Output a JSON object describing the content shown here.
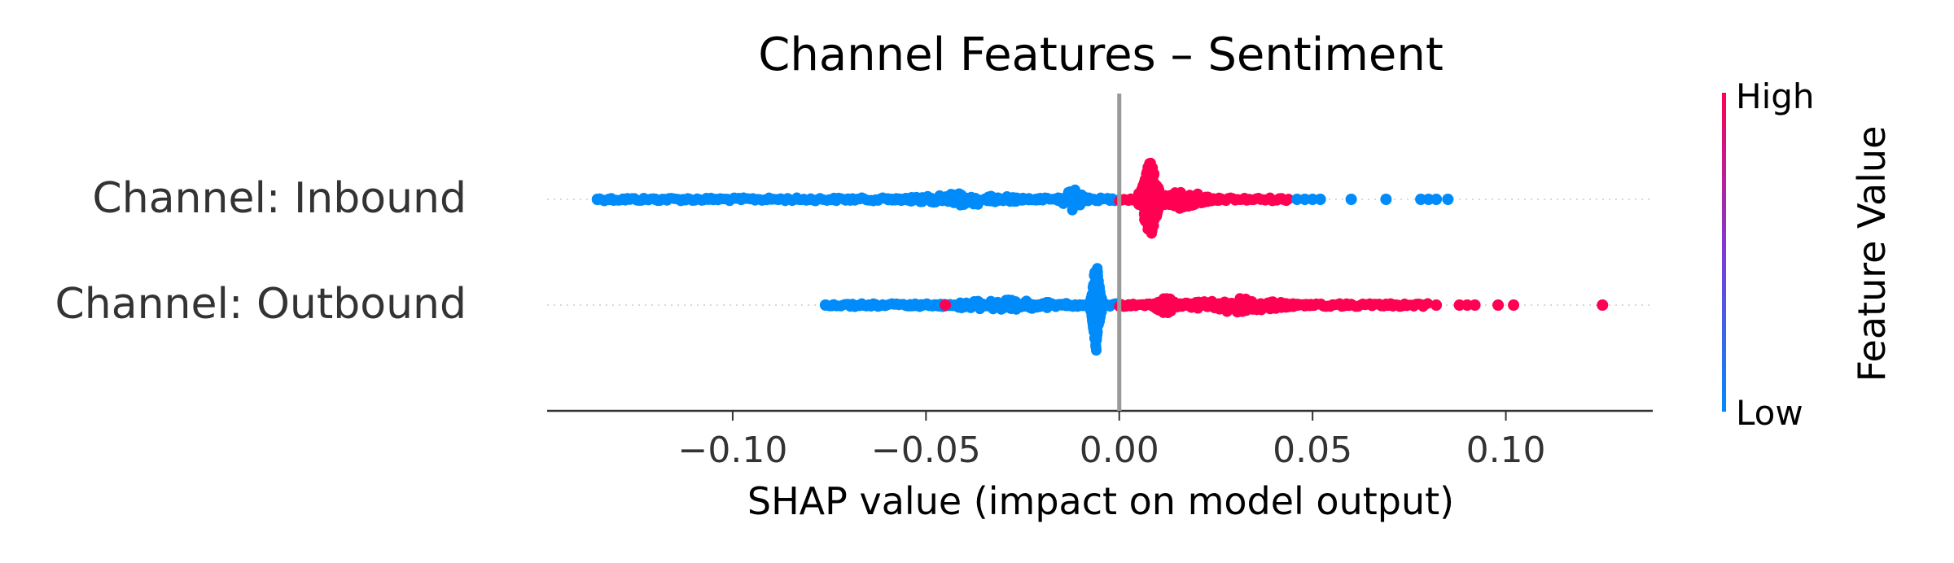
{
  "chart_data": {
    "type": "scatter",
    "subtype": "shap-beeswarm",
    "title": "Channel Features – Sentiment",
    "xlabel": "SHAP value (impact on model output)",
    "ylabel": "",
    "xlim": [
      -0.148,
      0.138
    ],
    "x_ticks": [
      -0.1,
      -0.05,
      0.0,
      0.05,
      0.1
    ],
    "x_tick_labels": [
      "−0.10",
      "−0.05",
      "0.00",
      "0.05",
      "0.10"
    ],
    "zero_line": 0.0,
    "grid": false,
    "features": [
      {
        "label": "Channel: Inbound",
        "low_value_range": [
          -0.135,
          0.0
        ],
        "high_value_range": [
          0.0,
          0.044
        ],
        "low_outliers": [
          -0.135,
          -0.132,
          -0.128,
          -0.123,
          -0.12,
          0.046,
          0.048,
          0.05,
          0.052,
          0.06,
          0.069,
          0.078,
          0.08,
          0.082,
          0.085
        ],
        "high_outliers": [],
        "low_cluster": -0.012,
        "high_cluster": 0.008
      },
      {
        "label": "Channel: Outbound",
        "low_value_range": [
          -0.075,
          0.0
        ],
        "high_value_range": [
          0.0,
          0.08
        ],
        "low_outliers": [
          -0.076,
          -0.074
        ],
        "high_outliers": [
          -0.045,
          0.082,
          0.088,
          0.09,
          0.092,
          0.098,
          0.102,
          0.125
        ],
        "low_cluster": -0.006,
        "high_cluster": 0.012
      }
    ],
    "colorbar": {
      "title": "Feature Value",
      "high_label": "High",
      "low_label": "Low",
      "high_color": "#ff0052",
      "low_color": "#008bfb"
    }
  }
}
